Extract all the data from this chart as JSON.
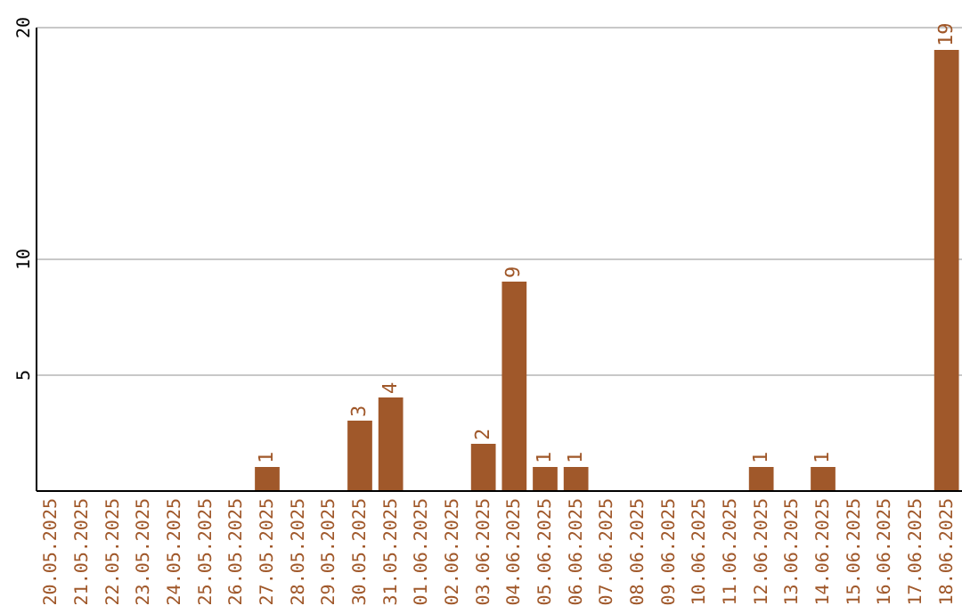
{
  "chart_data": {
    "type": "bar",
    "categories": [
      "20.05.2025",
      "21.05.2025",
      "22.05.2025",
      "23.05.2025",
      "24.05.2025",
      "25.05.2025",
      "26.05.2025",
      "27.05.2025",
      "28.05.2025",
      "29.05.2025",
      "30.05.2025",
      "31.05.2025",
      "01.06.2025",
      "02.06.2025",
      "03.06.2025",
      "04.06.2025",
      "05.06.2025",
      "06.06.2025",
      "07.06.2025",
      "08.06.2025",
      "09.06.2025",
      "10.06.2025",
      "11.06.2025",
      "12.06.2025",
      "13.06.2025",
      "14.06.2025",
      "15.06.2025",
      "16.06.2025",
      "17.06.2025",
      "18.06.2025"
    ],
    "values": [
      0,
      0,
      0,
      0,
      0,
      0,
      0,
      1,
      0,
      0,
      3,
      4,
      0,
      0,
      2,
      9,
      1,
      1,
      0,
      0,
      0,
      0,
      0,
      1,
      0,
      1,
      0,
      0,
      0,
      19
    ],
    "value_labels": [
      null,
      null,
      null,
      null,
      null,
      null,
      null,
      "1",
      null,
      null,
      "3",
      "4",
      null,
      null,
      "2",
      "9",
      "1",
      "1",
      null,
      null,
      null,
      null,
      null,
      "1",
      null,
      "1",
      null,
      null,
      null,
      "19"
    ],
    "color": "#a0582a",
    "ylim": [
      0,
      20
    ],
    "yticks": [
      5,
      10,
      20
    ],
    "grid": "y"
  }
}
